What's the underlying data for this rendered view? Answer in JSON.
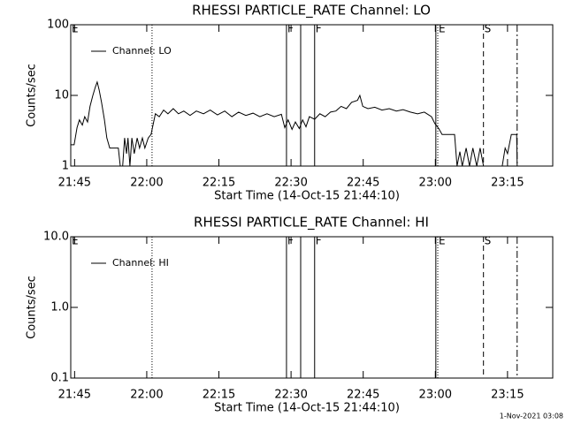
{
  "chart_data": [
    {
      "type": "line",
      "title": "RHESSI PARTICLE_RATE Channel: LO",
      "ylabel": "Counts/sec",
      "xlabel": "Start Time (14-Oct-15 21:44:10)",
      "xlim": [
        1304.2,
        1404.4
      ],
      "xticks": [
        {
          "value": 1305,
          "label": "21:45"
        },
        {
          "value": 1320,
          "label": "22:00"
        },
        {
          "value": 1335,
          "label": "22:15"
        },
        {
          "value": 1350,
          "label": "22:30"
        },
        {
          "value": 1365,
          "label": "22:45"
        },
        {
          "value": 1380,
          "label": "23:00"
        },
        {
          "value": 1395,
          "label": "23:15"
        }
      ],
      "ylim": [
        1,
        100
      ],
      "yticks": [
        1,
        10,
        100
      ],
      "log_y": true,
      "legend": "upper left",
      "events": [
        {
          "x": 1304.2,
          "style": "solid",
          "label": "E"
        },
        {
          "x": 1321.1,
          "style": "dotted"
        },
        {
          "x": 1349.05,
          "style": "solid",
          "label": "F"
        },
        {
          "x": 1352.0,
          "style": "solid"
        },
        {
          "x": 1354.9,
          "style": "solid",
          "label": "F"
        },
        {
          "x": 1380.1,
          "style": "solid"
        },
        {
          "x": 1380.5,
          "style": "dotted",
          "label": "E"
        },
        {
          "x": 1390.0,
          "style": "dashed",
          "label": "S"
        },
        {
          "x": 1397.0,
          "style": "dashdot"
        }
      ],
      "series": [
        {
          "name": "Channel: LO",
          "color": "#000000",
          "x": [
            1304.2,
            1304.9,
            1305.5,
            1306.0,
            1306.6,
            1307.1,
            1307.7,
            1308.2,
            1308.8,
            1309.3,
            1309.7,
            1310.1,
            1310.6,
            1311.2,
            1311.7,
            1312.3,
            1313.4,
            1314.1,
            1314.5,
            1315.0,
            1315.4,
            1315.8,
            1316.1,
            1316.5,
            1316.9,
            1317.4,
            1318.0,
            1318.5,
            1319.1,
            1319.6,
            1320.3,
            1320.9,
            1321.3,
            1321.8,
            1322.6,
            1323.5,
            1324.4,
            1325.5,
            1326.6,
            1327.7,
            1329.0,
            1330.3,
            1331.8,
            1333.2,
            1334.7,
            1336.2,
            1337.7,
            1339.1,
            1340.6,
            1342.1,
            1343.5,
            1345.0,
            1346.5,
            1348.0,
            1348.7,
            1349.4,
            1350.2,
            1350.9,
            1351.7,
            1352.4,
            1353.1,
            1353.8,
            1354.9,
            1356.0,
            1357.1,
            1358.2,
            1359.3,
            1360.4,
            1361.5,
            1362.6,
            1363.8,
            1364.3,
            1364.9,
            1366.0,
            1367.4,
            1368.9,
            1370.4,
            1371.9,
            1373.3,
            1374.8,
            1376.3,
            1377.7,
            1379.2,
            1379.9,
            1380.7,
            1381.4,
            1382.9,
            1384.0,
            1384.5,
            1385.1,
            1385.6,
            1386.4,
            1387.1,
            1387.8,
            1388.6,
            1389.3,
            1390.0,
            1391.0,
            1393.9,
            1394.5,
            1395.0,
            1395.8,
            1396.9,
            1397.0
          ],
          "values": [
            2.0,
            2.0,
            3.5,
            4.5,
            3.8,
            5.0,
            4.2,
            7.0,
            10,
            13,
            15.5,
            12,
            8,
            4.5,
            2.5,
            1.8,
            1.8,
            1.8,
            1,
            1,
            2.5,
            1.5,
            2.5,
            1,
            2.5,
            1.5,
            2.5,
            1.8,
            2.5,
            1.8,
            2.5,
            2.8,
            3.8,
            5.5,
            5.0,
            6.2,
            5.5,
            6.5,
            5.5,
            6.0,
            5.2,
            6.0,
            5.5,
            6.2,
            5.3,
            6.0,
            5.0,
            5.8,
            5.2,
            5.6,
            5.0,
            5.5,
            5.0,
            5.4,
            3.5,
            4.5,
            3.3,
            4.2,
            3.4,
            4.5,
            3.6,
            5.0,
            4.6,
            5.5,
            5.0,
            5.8,
            6.0,
            7.0,
            6.5,
            8.0,
            8.5,
            10,
            7.0,
            6.5,
            6.8,
            6.2,
            6.5,
            6.0,
            6.3,
            5.8,
            5.5,
            5.8,
            5.0,
            4.0,
            3.4,
            2.8,
            2.8,
            2.8,
            1,
            1.6,
            1,
            1.8,
            1,
            1.8,
            1,
            1.8,
            1,
            1,
            1,
            1.8,
            1.5,
            2.8,
            2.8,
            1
          ]
        }
      ]
    },
    {
      "type": "line",
      "title": "RHESSI PARTICLE_RATE Channel: HI",
      "ylabel": "Counts/sec",
      "xlabel": "Start Time (14-Oct-15 21:44:10)",
      "xlim": [
        1304.2,
        1404.4
      ],
      "xticks": [
        {
          "value": 1305,
          "label": "21:45"
        },
        {
          "value": 1320,
          "label": "22:00"
        },
        {
          "value": 1335,
          "label": "22:15"
        },
        {
          "value": 1350,
          "label": "22:30"
        },
        {
          "value": 1365,
          "label": "22:45"
        },
        {
          "value": 1380,
          "label": "23:00"
        },
        {
          "value": 1395,
          "label": "23:15"
        }
      ],
      "ylim": [
        0.1,
        10
      ],
      "yticks": [
        0.1,
        {
          "value": 1,
          "label": "1.0"
        },
        {
          "value": 10,
          "label": "10.0"
        }
      ],
      "log_y": true,
      "legend": "upper left",
      "events": [
        {
          "x": 1304.2,
          "style": "solid",
          "label": "E"
        },
        {
          "x": 1321.1,
          "style": "dotted"
        },
        {
          "x": 1349.05,
          "style": "solid",
          "label": "F"
        },
        {
          "x": 1352.0,
          "style": "solid"
        },
        {
          "x": 1354.9,
          "style": "solid",
          "label": "F"
        },
        {
          "x": 1380.1,
          "style": "solid"
        },
        {
          "x": 1380.5,
          "style": "dotted",
          "label": "E"
        },
        {
          "x": 1390.0,
          "style": "dashed",
          "label": "S"
        },
        {
          "x": 1397.0,
          "style": "dashdot"
        }
      ],
      "series": [
        {
          "name": "Channel: HI",
          "color": "#000000",
          "x": [],
          "values": []
        }
      ]
    }
  ],
  "footer": "1-Nov-2021 03:08"
}
